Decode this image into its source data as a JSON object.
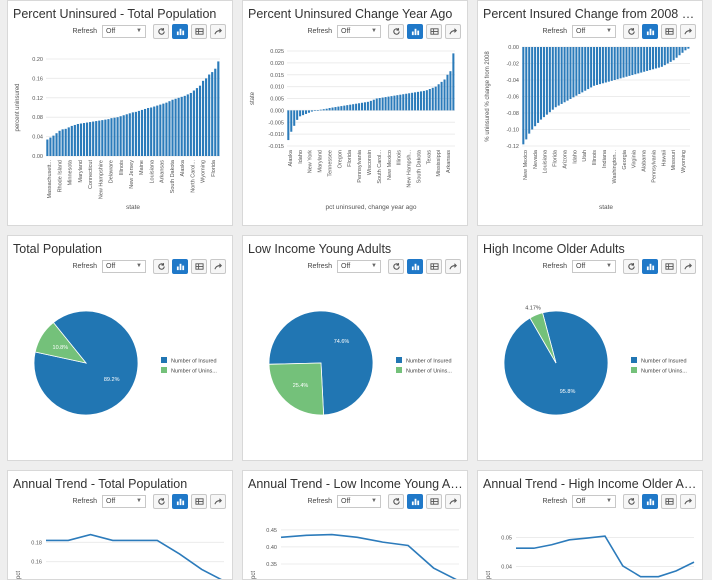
{
  "toolbar": {
    "refresh_label": "Refresh",
    "refresh_value": "Off",
    "icons": [
      "refresh-icon",
      "chart-view-icon",
      "table-view-icon",
      "share-icon"
    ]
  },
  "colors": {
    "bar": "#2b7bba",
    "insured": "#2176b3",
    "uninsured": "#74c17a",
    "line": "#2c7bbb",
    "active_button": "#1f78c8"
  },
  "panels": [
    {
      "title": "Percent Uninsured - Total Population"
    },
    {
      "title": "Percent Uninsured Change Year Ago"
    },
    {
      "title": "Percent Insured Change from 2008 By S..."
    },
    {
      "title": "Total Population"
    },
    {
      "title": "Low Income Young Adults"
    },
    {
      "title": "High Income Older Adults"
    },
    {
      "title": "Annual Trend - Total Population"
    },
    {
      "title": "Annual Trend - Low Income Young Adults"
    },
    {
      "title": "Annual Trend - High Income Older Adults"
    }
  ],
  "chart_data": [
    {
      "type": "bar",
      "title": "Percent Uninsured - Total Population",
      "xlabel": "state",
      "ylabel": "percent uninsured",
      "ylim": [
        0,
        0.2
      ],
      "yticks": [
        "0.00",
        "0.04",
        "0.08",
        "0.12",
        "0.16",
        "0.20"
      ],
      "tick_labels": [
        "Massachusett...",
        "Rhode Island",
        "Minnesota",
        "Maryland",
        "Connecticut",
        "New Hampshire",
        "Delaware",
        "Illinois",
        "New Jersey",
        "Maine",
        "Louisiana",
        "Arkansas",
        "South Dakota",
        "Alaska",
        "North Carol...",
        "Wyoming",
        "Florida"
      ],
      "values": [
        0.034,
        0.038,
        0.042,
        0.047,
        0.052,
        0.055,
        0.056,
        0.059,
        0.062,
        0.064,
        0.066,
        0.067,
        0.068,
        0.069,
        0.07,
        0.071,
        0.072,
        0.073,
        0.074,
        0.075,
        0.076,
        0.078,
        0.079,
        0.08,
        0.082,
        0.084,
        0.086,
        0.088,
        0.09,
        0.091,
        0.093,
        0.095,
        0.097,
        0.099,
        0.1,
        0.102,
        0.104,
        0.106,
        0.108,
        0.11,
        0.113,
        0.116,
        0.118,
        0.12,
        0.122,
        0.124,
        0.127,
        0.13,
        0.135,
        0.14,
        0.145,
        0.155,
        0.16,
        0.168,
        0.173,
        0.18,
        0.195
      ]
    },
    {
      "type": "bar",
      "title": "Percent Uninsured Change Year Ago",
      "xlabel": "pct uninsured, change year ago",
      "ylabel": "state",
      "ylim": [
        -0.015,
        0.025
      ],
      "yticks": [
        "-0.015",
        "-0.010",
        "-0.005",
        "0.000",
        "0.005",
        "0.010",
        "0.015",
        "0.020",
        "0.025"
      ],
      "tick_labels": [
        "Alaska",
        "Idaho",
        "New York",
        "Maryland",
        "Tennessee",
        "Oregon",
        "Florida",
        "Pennsylvania",
        "Wisconsin",
        "South Carol...",
        "New Mexico",
        "Illinois",
        "New Hampsh...",
        "South Dakota",
        "Texas",
        "Mississippi",
        "Arkansas"
      ],
      "values": [
        -0.0125,
        -0.009,
        -0.0065,
        -0.004,
        -0.0025,
        -0.002,
        -0.0015,
        -0.001,
        -0.0005,
        0,
        0,
        0.0003,
        0.0005,
        0.0007,
        0.001,
        0.0012,
        0.0014,
        0.0016,
        0.0018,
        0.002,
        0.0022,
        0.0024,
        0.0026,
        0.0028,
        0.003,
        0.0032,
        0.0034,
        0.0036,
        0.004,
        0.0045,
        0.005,
        0.0052,
        0.0054,
        0.0056,
        0.0058,
        0.006,
        0.0062,
        0.0064,
        0.0066,
        0.0068,
        0.007,
        0.0072,
        0.0074,
        0.0076,
        0.0078,
        0.008,
        0.0082,
        0.0085,
        0.009,
        0.0095,
        0.01,
        0.011,
        0.012,
        0.013,
        0.015,
        0.0165,
        0.024
      ]
    },
    {
      "type": "bar",
      "title": "Percent Insured Change from 2008 By State",
      "xlabel": "state",
      "ylabel": "% uninsured % change from 2008",
      "ylim": [
        -0.12,
        0.0
      ],
      "yticks": [
        "0.00",
        "-0.02",
        "-0.04",
        "-0.06",
        "-0.08",
        "-0.10",
        "-0.12"
      ],
      "tick_labels": [
        "New Mexico",
        "Nevada",
        "Louisiana",
        "Florida",
        "Arizona",
        "Idaho",
        "Utah",
        "Illinois",
        "Indiana",
        "Washington...",
        "Georgia",
        "Virginia",
        "Alabama",
        "Pennsylvania",
        "Hawaii",
        "Missouri",
        "Wyoming"
      ],
      "values": [
        -0.118,
        -0.112,
        -0.105,
        -0.1,
        -0.096,
        -0.092,
        -0.088,
        -0.085,
        -0.082,
        -0.079,
        -0.076,
        -0.073,
        -0.071,
        -0.069,
        -0.067,
        -0.065,
        -0.063,
        -0.061,
        -0.059,
        -0.057,
        -0.055,
        -0.053,
        -0.051,
        -0.049,
        -0.047,
        -0.046,
        -0.045,
        -0.044,
        -0.043,
        -0.042,
        -0.041,
        -0.04,
        -0.039,
        -0.038,
        -0.037,
        -0.036,
        -0.035,
        -0.034,
        -0.033,
        -0.032,
        -0.031,
        -0.03,
        -0.029,
        -0.028,
        -0.027,
        -0.026,
        -0.025,
        -0.024,
        -0.022,
        -0.02,
        -0.018,
        -0.016,
        -0.013,
        -0.01,
        -0.007,
        -0.004,
        -0.002
      ]
    },
    {
      "type": "pie",
      "title": "Total Population",
      "slices": [
        {
          "label": "Number of Insured",
          "value": 89.2,
          "text": "89.2%"
        },
        {
          "label": "Number of Unins...",
          "value": 10.8,
          "text": "10.8%"
        }
      ]
    },
    {
      "type": "pie",
      "title": "Low Income Young Adults",
      "slices": [
        {
          "label": "Number of Insured",
          "value": 74.6,
          "text": "74.6%"
        },
        {
          "label": "Number of Unins...",
          "value": 25.4,
          "text": "25.4%"
        }
      ]
    },
    {
      "type": "pie",
      "title": "High Income Older Adults",
      "slices": [
        {
          "label": "Number of Insured",
          "value": 95.8,
          "text": "95.8%"
        },
        {
          "label": "Number of Unins...",
          "value": 4.17,
          "text": "4.17%"
        }
      ]
    },
    {
      "type": "line",
      "title": "Annual Trend - Total Population",
      "ylabel": "pct",
      "ylim": [
        0.14,
        0.2
      ],
      "yticks": [
        "0.18",
        "0.16"
      ],
      "values": [
        0.182,
        0.182,
        0.188,
        0.182,
        0.182,
        0.182,
        0.168,
        0.152,
        0.14
      ]
    },
    {
      "type": "line",
      "title": "Annual Trend - Low Income Young Adults",
      "ylabel": "pct",
      "ylim": [
        0.3,
        0.47
      ],
      "yticks": [
        "0.45",
        "0.40",
        "0.35"
      ],
      "values": [
        0.428,
        0.434,
        0.436,
        0.428,
        0.414,
        0.404,
        0.338,
        0.3
      ]
    },
    {
      "type": "line",
      "title": "Annual Trend - High Income Older Adults",
      "ylabel": "pct",
      "ylim": [
        0.035,
        0.055
      ],
      "yticks": [
        "0.05",
        "0.04"
      ],
      "values": [
        0.0463,
        0.0463,
        0.0475,
        0.0492,
        0.0498,
        0.0505,
        0.0402,
        0.0365,
        0.0365,
        0.0385,
        0.0415
      ]
    }
  ]
}
